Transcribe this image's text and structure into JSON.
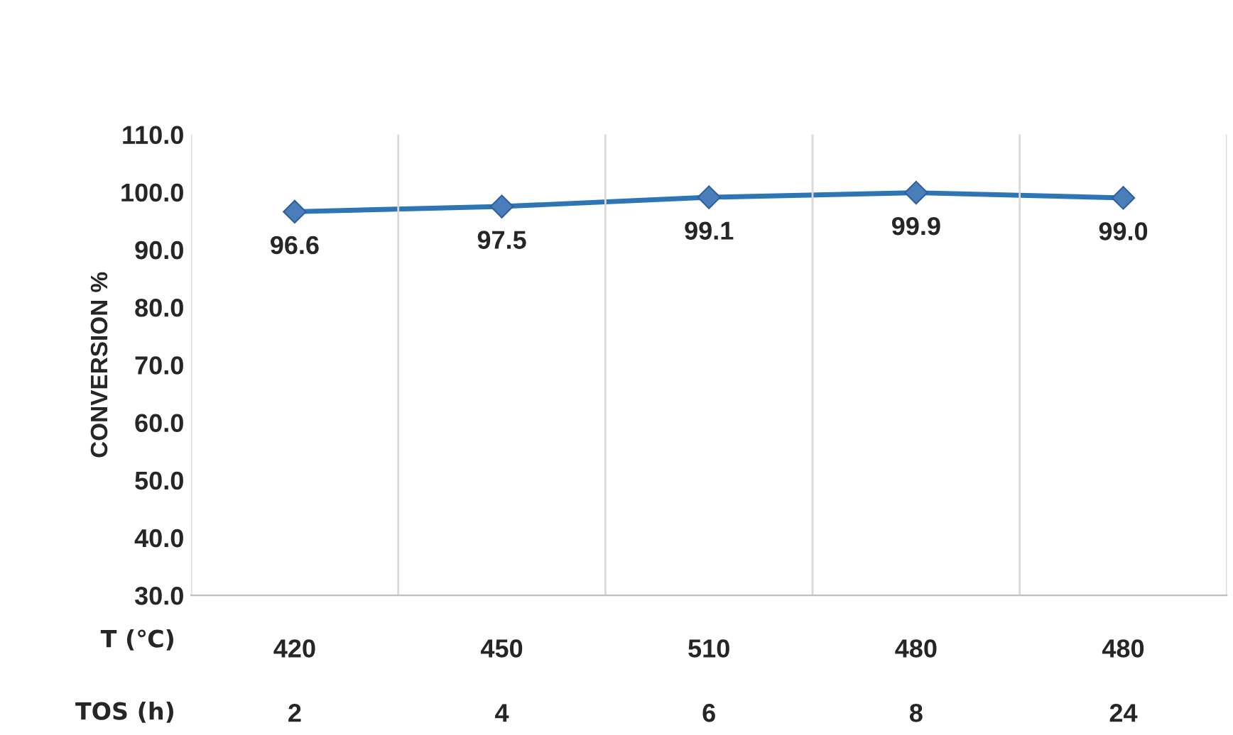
{
  "chart_data": {
    "type": "line",
    "ylabel": "CONVERSION %",
    "categories": [
      "420\n\n2",
      "450\n\n4",
      "510\n\n6",
      "480\n\n8",
      "480\n\n24"
    ],
    "series": [
      {
        "color": "#2e75b6",
        "values": [
          96.6,
          97.5,
          99.1,
          99.9,
          99.0
        ]
      }
    ],
    "ylim": [
      30,
      110
    ],
    "yticks": [
      {
        "value": 30,
        "label": "30.0"
      },
      {
        "value": 40,
        "label": "40.0"
      },
      {
        "value": 50,
        "label": "50.0"
      },
      {
        "value": 60,
        "label": "60.0"
      },
      {
        "value": 70,
        "label": "70.0"
      },
      {
        "value": 80,
        "label": "80.0"
      },
      {
        "value": 90,
        "label": "90.0"
      },
      {
        "value": 100,
        "label": "100.0"
      },
      {
        "value": 110,
        "label": "110.0"
      }
    ],
    "annotations": [
      "T (℃)",
      "TOS (h)"
    ],
    "marker": "diamond",
    "line_style": "solid",
    "grid": "x",
    "value_labels": [
      "96.6",
      "97.5",
      "99.1",
      "99.9",
      "99.0"
    ]
  }
}
